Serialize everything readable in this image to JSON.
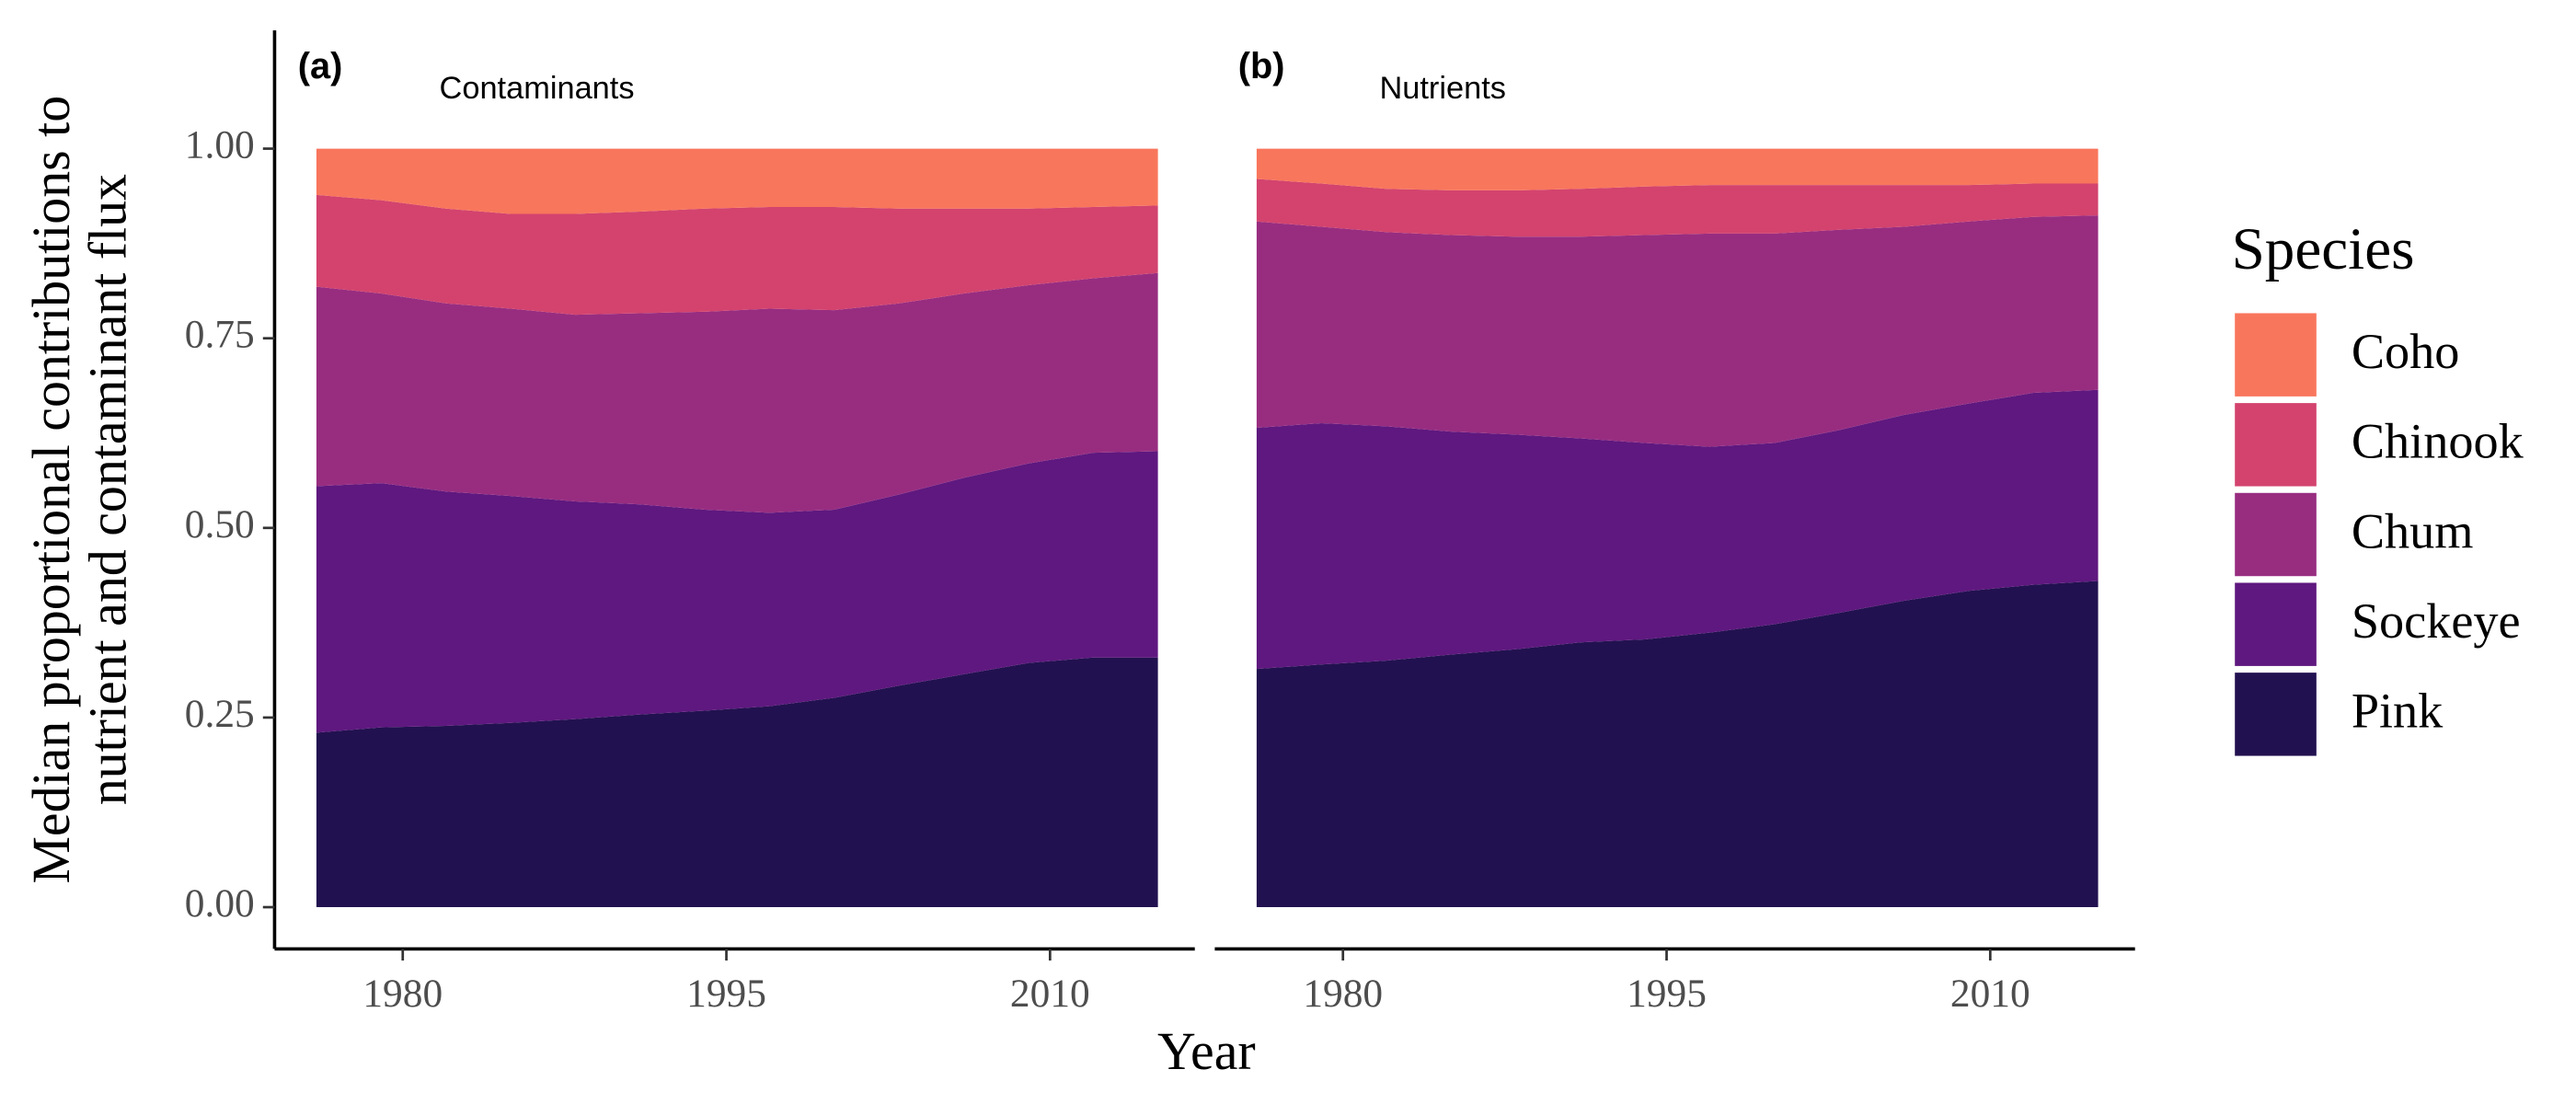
{
  "ylabel": [
    "Median proportional contributions to",
    "nutrient and contaminant flux"
  ],
  "xlabel": "Year",
  "legend_title": "Species",
  "chart_data": [
    {
      "type": "stacked-area",
      "panel_label": "(a)",
      "title": "Contaminants",
      "x": [
        1976,
        1979,
        1982,
        1985,
        1988,
        1991,
        1994,
        1997,
        2000,
        2003,
        2006,
        2009,
        2012,
        2015
      ],
      "xlim": [
        1974.06,
        2016.71
      ],
      "xticks": [
        1980,
        1995,
        2010
      ],
      "ylim": [
        -0.055,
        1.156
      ],
      "yticks": [
        {
          "value": 0,
          "label": "0.00"
        },
        {
          "value": 0.25,
          "label": "0.25"
        },
        {
          "value": 0.5,
          "label": "0.50"
        },
        {
          "value": 0.75,
          "label": "0.75"
        },
        {
          "value": 1,
          "label": "1.00"
        }
      ],
      "series": [
        {
          "name": "Pink",
          "color": "#221150",
          "values": [
            0.23,
            0.237,
            0.239,
            0.243,
            0.248,
            0.254,
            0.259,
            0.265,
            0.276,
            0.292,
            0.307,
            0.322,
            0.329,
            0.329
          ]
        },
        {
          "name": "Sockeye",
          "color": "#5f187f",
          "values": [
            0.325,
            0.322,
            0.309,
            0.299,
            0.287,
            0.277,
            0.265,
            0.255,
            0.248,
            0.252,
            0.259,
            0.263,
            0.27,
            0.272
          ]
        },
        {
          "name": "Chum",
          "color": "#982d80",
          "values": [
            0.263,
            0.25,
            0.248,
            0.247,
            0.246,
            0.252,
            0.261,
            0.269,
            0.263,
            0.252,
            0.243,
            0.235,
            0.23,
            0.235
          ]
        },
        {
          "name": "Chinook",
          "color": "#d3436e",
          "values": [
            0.121,
            0.123,
            0.125,
            0.125,
            0.133,
            0.134,
            0.136,
            0.134,
            0.136,
            0.125,
            0.112,
            0.101,
            0.094,
            0.089
          ]
        },
        {
          "name": "Coho",
          "color": "#f8765c",
          "values": [
            0.061,
            0.068,
            0.079,
            0.086,
            0.086,
            0.083,
            0.079,
            0.077,
            0.077,
            0.079,
            0.079,
            0.079,
            0.077,
            0.075
          ]
        }
      ]
    },
    {
      "type": "stacked-area",
      "panel_label": "(b)",
      "title": "Nutrients",
      "x": [
        1976,
        1979,
        1982,
        1985,
        1988,
        1991,
        1994,
        1997,
        2000,
        2003,
        2006,
        2009,
        2012,
        2015
      ],
      "xlim": [
        1974.06,
        2016.71
      ],
      "xticks": [
        1980,
        1995,
        2010
      ],
      "ylim": [
        -0.055,
        1.156
      ],
      "series": [
        {
          "name": "Pink",
          "color": "#221150",
          "values": [
            0.314,
            0.32,
            0.325,
            0.333,
            0.34,
            0.349,
            0.353,
            0.362,
            0.373,
            0.388,
            0.404,
            0.417,
            0.425,
            0.43
          ]
        },
        {
          "name": "Sockeye",
          "color": "#5f187f",
          "values": [
            0.318,
            0.318,
            0.309,
            0.294,
            0.283,
            0.269,
            0.259,
            0.245,
            0.239,
            0.241,
            0.245,
            0.247,
            0.253,
            0.252
          ]
        },
        {
          "name": "Chum",
          "color": "#982d80",
          "values": [
            0.272,
            0.259,
            0.256,
            0.259,
            0.261,
            0.266,
            0.274,
            0.281,
            0.276,
            0.264,
            0.248,
            0.24,
            0.232,
            0.23
          ]
        },
        {
          "name": "Chinook",
          "color": "#d3436e",
          "values": [
            0.056,
            0.057,
            0.057,
            0.059,
            0.061,
            0.063,
            0.064,
            0.064,
            0.064,
            0.059,
            0.055,
            0.048,
            0.044,
            0.042
          ]
        },
        {
          "name": "Coho",
          "color": "#f8765c",
          "values": [
            0.04,
            0.046,
            0.053,
            0.055,
            0.055,
            0.053,
            0.05,
            0.048,
            0.048,
            0.048,
            0.048,
            0.048,
            0.046,
            0.046
          ]
        }
      ]
    }
  ]
}
